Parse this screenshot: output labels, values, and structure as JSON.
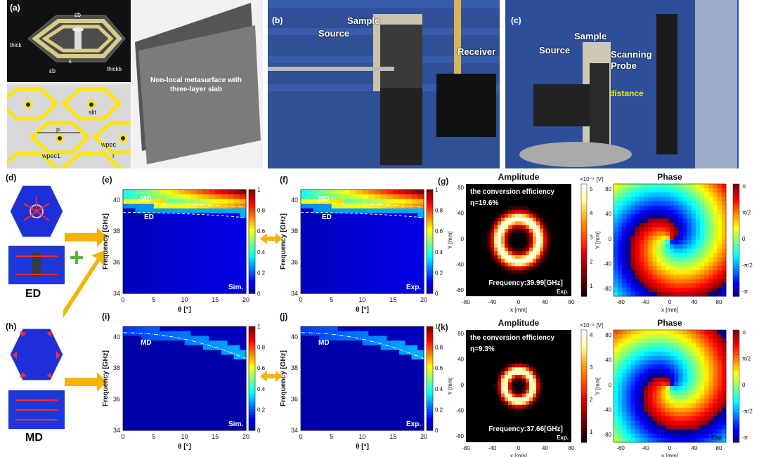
{
  "panel_a": {
    "label": "(a)",
    "params": {
      "eps_b_top": "εb",
      "eps_b_bot": "εb",
      "eps": "ε",
      "thick": "thick",
      "thickb": "thickb",
      "slit": "slit",
      "p": "p",
      "wpec1": "wpec1",
      "wpec": "wpec",
      "r": "r"
    },
    "sample_text": "Non-local metasurface with three-layer slab"
  },
  "panel_b": {
    "label": "(b)",
    "source": "Source",
    "sample": "Sample",
    "receiver": "Receiver"
  },
  "panel_c": {
    "label": "(c)",
    "source": "Source",
    "sample": "Sample",
    "probe": "Scanning Probe",
    "distance": "distance"
  },
  "panel_d": {
    "label": "(d)",
    "mode": "ED"
  },
  "panel_h": {
    "label": "(h)",
    "mode": "MD"
  },
  "maps": [
    {
      "label": "(e)",
      "tag": "Sim.",
      "mode1": "MD",
      "mode2": "ED"
    },
    {
      "label": "(f)",
      "tag": "Exp.",
      "mode1": "MD",
      "mode2": "ED"
    },
    {
      "label": "(i)",
      "tag": "Sim.",
      "mode1": "MD",
      "mode2": ""
    },
    {
      "label": "(j)",
      "tag": "Exp.",
      "mode1": "MD",
      "mode2": ""
    }
  ],
  "map_axes": {
    "ylabel": "Frequency [GHz]",
    "xlabel": "θ [°]",
    "xticks": [
      "0",
      "5",
      "10",
      "15",
      "20"
    ],
    "yticks": [
      "40",
      "38",
      "36",
      "34"
    ],
    "cbar_ticks": [
      "1",
      "0.8",
      "0.6",
      "0.4",
      "0.2",
      "0"
    ]
  },
  "field_plots": [
    {
      "label": "(g)",
      "amp_title": "Amplitude",
      "phase_title": "Phase",
      "efficiency_line": "the conversion efficiency",
      "eta": "η=19.6%",
      "freq": "Frequency:39.99[GHz]",
      "tag_amp": "Exp.",
      "tag_phase": "Exp.",
      "amp_scale": "×10⁻⁵ [V]",
      "amp_cbar_ticks": [
        "5",
        "4",
        "3",
        "2",
        "1"
      ]
    },
    {
      "label": "(k)",
      "amp_title": "Amplitude",
      "phase_title": "Phase",
      "efficiency_line": "the conversion efficiency",
      "eta": "η=9.3%",
      "freq": "Frequency:37.66[GHz]",
      "tag_amp": "Exp.",
      "tag_phase": "Exp.",
      "amp_scale": "×10⁻⁵ [V]",
      "amp_cbar_ticks": [
        "4",
        "3",
        "2",
        "1"
      ]
    }
  ],
  "field_axes": {
    "xlabel": "x [mm]",
    "ylabel": "Y [mm]",
    "ticks": [
      "-80",
      "-40",
      "0",
      "40",
      "80"
    ],
    "yticks": [
      "80",
      "40",
      "0",
      "-40",
      "-80"
    ],
    "phase_cbar_ticks": [
      "π",
      "π/2",
      "0",
      "-π/2",
      "-π"
    ]
  }
}
